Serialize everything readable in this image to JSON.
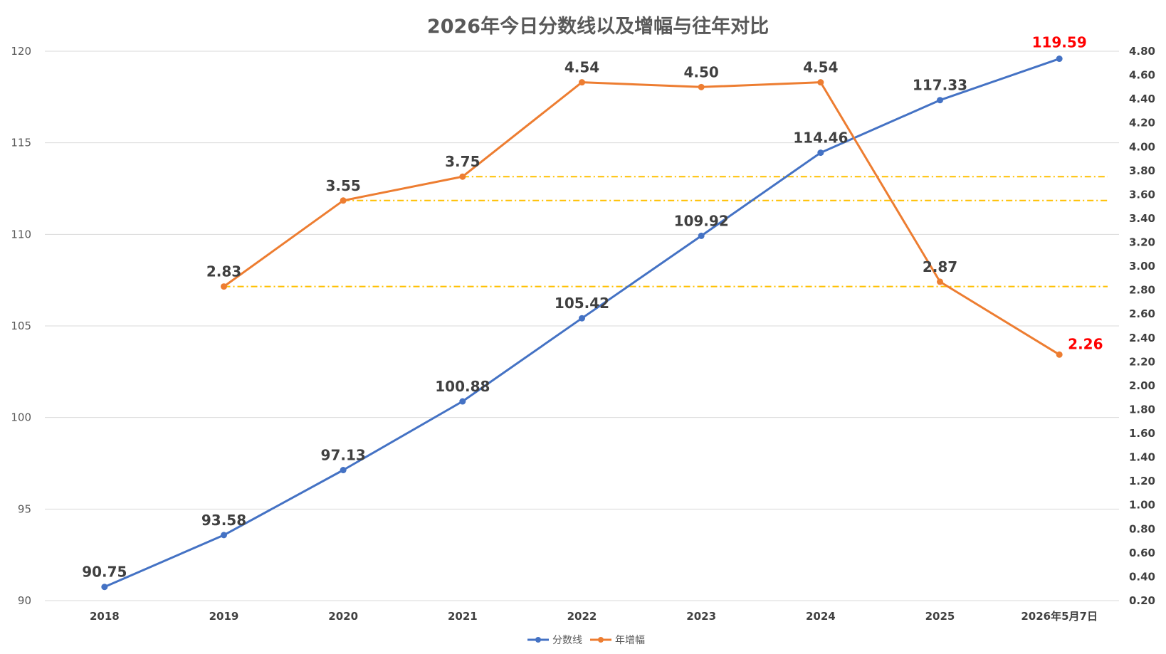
{
  "chart_data": {
    "type": "line",
    "title": "2026年今日分数线以及增幅与往年对比",
    "categories": [
      "2018",
      "2019",
      "2020",
      "2021",
      "2022",
      "2023",
      "2024",
      "2025",
      "2026年5月7日"
    ],
    "y_left": {
      "min": 90,
      "max": 120,
      "ticks": [
        "90",
        "95",
        "100",
        "105",
        "110",
        "115",
        "120"
      ]
    },
    "y_right": {
      "min": 0.2,
      "max": 4.8,
      "ticks": [
        "0.20",
        "0.40",
        "0.60",
        "0.80",
        "1.00",
        "1.20",
        "1.40",
        "1.60",
        "1.80",
        "2.00",
        "2.20",
        "2.40",
        "2.60",
        "2.80",
        "3.00",
        "3.20",
        "3.40",
        "3.60",
        "3.80",
        "4.00",
        "4.20",
        "4.40",
        "4.60",
        "4.80"
      ]
    },
    "series": [
      {
        "name": "分数线",
        "axis": "left",
        "color": "#4472c4",
        "values": [
          90.75,
          93.58,
          97.13,
          100.88,
          105.42,
          109.92,
          114.46,
          117.33,
          119.59
        ],
        "labels": [
          "90.75",
          "93.58",
          "97.13",
          "100.88",
          "105.42",
          "109.92",
          "114.46",
          "117.33",
          "119.59"
        ],
        "highlight_last": true
      },
      {
        "name": "年增幅",
        "axis": "right",
        "color": "#ed7d31",
        "values": [
          null,
          2.83,
          3.55,
          3.75,
          4.54,
          4.5,
          4.54,
          2.87,
          2.26
        ],
        "labels": [
          "",
          "2.83",
          "3.55",
          "3.75",
          "4.54",
          "4.50",
          "4.54",
          "2.87",
          "2.26"
        ],
        "highlight_last": true
      }
    ],
    "reference_lines": [
      {
        "axis": "right",
        "value": 3.75,
        "from_category": "2021",
        "color": "#ffc000"
      },
      {
        "axis": "right",
        "value": 3.55,
        "from_category": "2020",
        "color": "#ffc000"
      },
      {
        "axis": "right",
        "value": 2.83,
        "from_category": "2019",
        "color": "#ffc000"
      }
    ],
    "highlight_color": "#ff0000",
    "grid": true,
    "legend_position": "bottom"
  }
}
